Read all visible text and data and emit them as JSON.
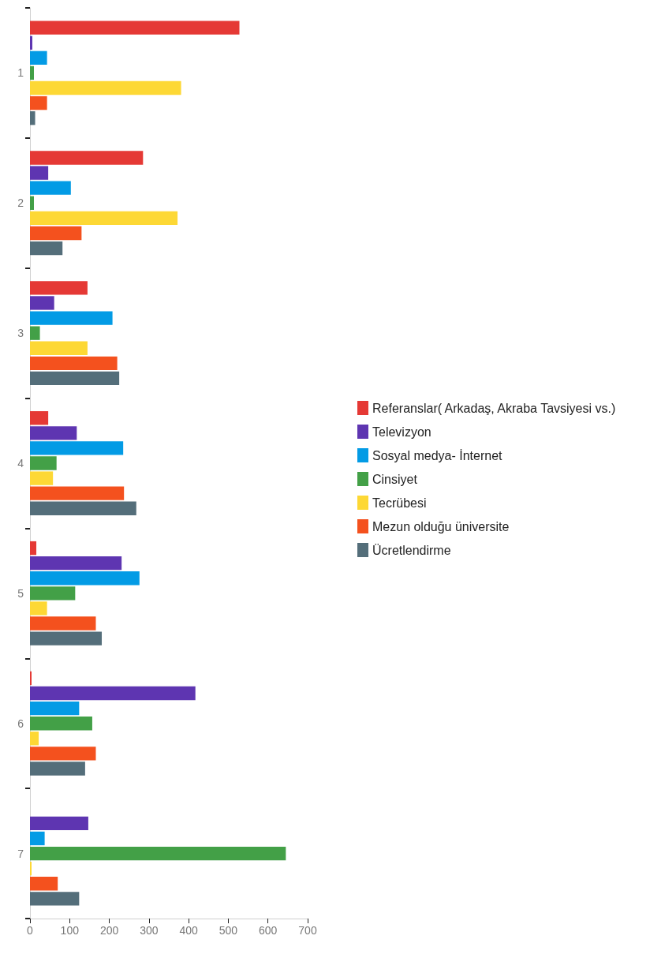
{
  "chart_data": {
    "type": "bar",
    "orientation": "horizontal",
    "categories": [
      "1",
      "2",
      "3",
      "4",
      "5",
      "6",
      "7"
    ],
    "series": [
      {
        "name": "Referanslar( Arkadaş, Akraba Tavsiyesi vs.)",
        "color": "#e53935",
        "values": [
          528,
          285,
          145,
          46,
          16,
          4,
          0
        ]
      },
      {
        "name": "Televizyon",
        "color": "#5e35b1",
        "values": [
          6,
          46,
          61,
          118,
          231,
          417,
          147
        ]
      },
      {
        "name": "Sosyal medya- İnternet",
        "color": "#039be5",
        "values": [
          43,
          103,
          208,
          235,
          276,
          124,
          37
        ]
      },
      {
        "name": "Cinsiyet",
        "color": "#43a047",
        "values": [
          10,
          10,
          25,
          67,
          114,
          157,
          645
        ]
      },
      {
        "name": "Tecrübesi",
        "color": "#fdd835",
        "values": [
          381,
          372,
          145,
          58,
          43,
          22,
          4
        ]
      },
      {
        "name": "Mezun olduğu üniversite",
        "color": "#f4511e",
        "values": [
          43,
          130,
          220,
          237,
          166,
          166,
          70
        ]
      },
      {
        "name": "Ücretlendirme",
        "color": "#546e7a",
        "values": [
          13,
          82,
          225,
          268,
          181,
          139,
          124
        ]
      }
    ],
    "xlim": [
      0,
      700
    ],
    "xticks": [
      0,
      100,
      200,
      300,
      400,
      500,
      600,
      700
    ],
    "grid": false,
    "legend": "right"
  }
}
